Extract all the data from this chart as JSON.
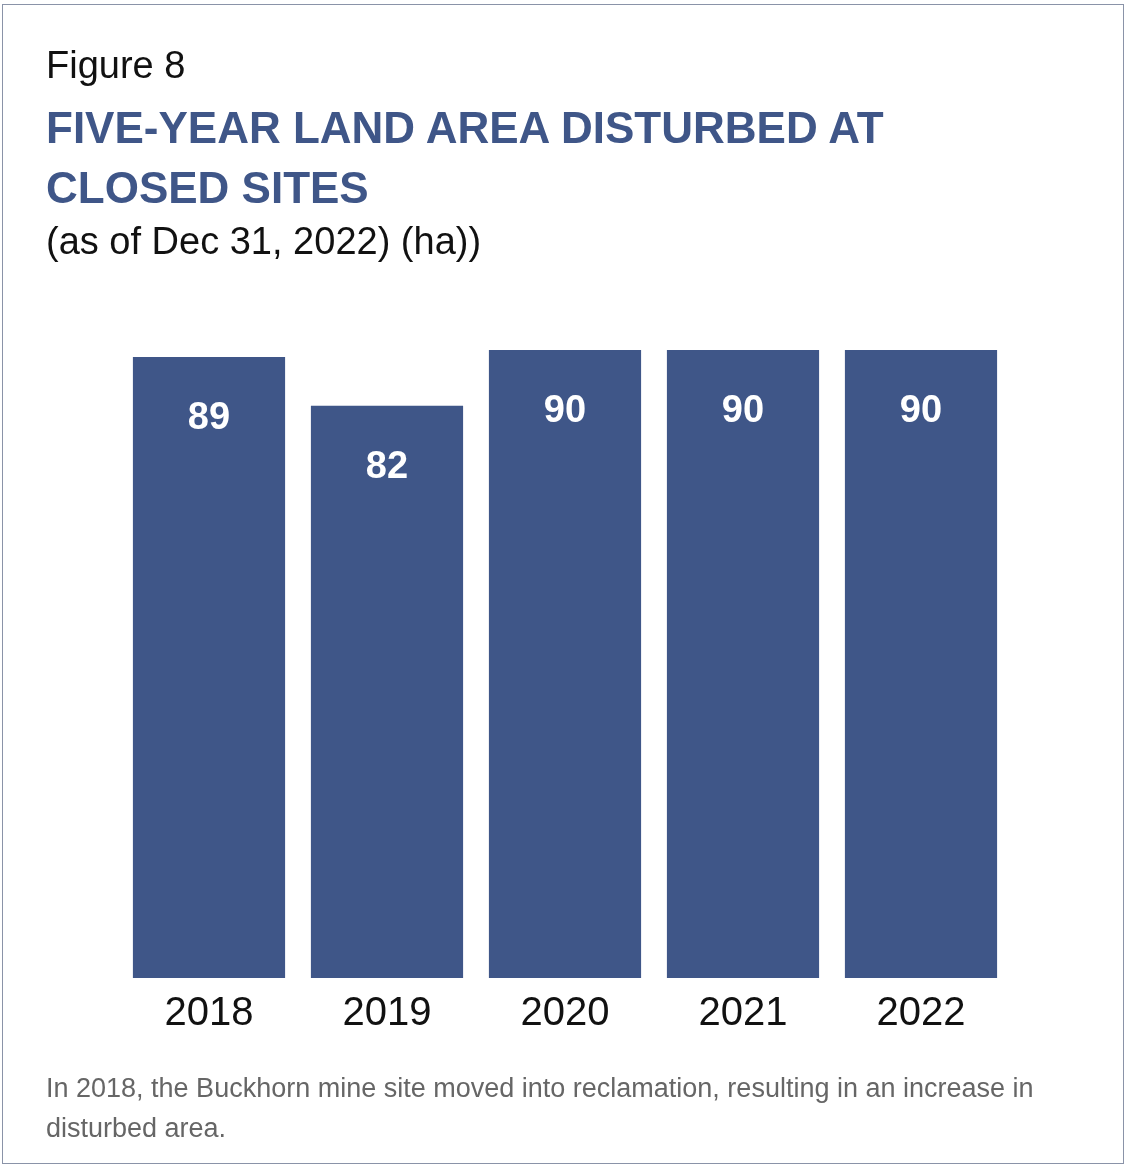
{
  "chart_data": {
    "type": "bar",
    "title": "FIVE-YEAR LAND AREA DISTURBED AT CLOSED SITES",
    "subtitle": "(as of Dec 31, 2022) (ha))",
    "annotations": [
      "Figure 8",
      "In 2018, the Buckhorn mine site moved into reclamation, resulting in an increase in disturbed area."
    ],
    "categories": [
      "2018",
      "2019",
      "2020",
      "2021",
      "2022"
    ],
    "values": [
      89,
      82,
      90,
      90,
      90
    ],
    "color": "#3f5688",
    "ylim": [
      0,
      90
    ],
    "tick_labels": "x",
    "data_labels": true,
    "grid": false,
    "legend": false
  }
}
